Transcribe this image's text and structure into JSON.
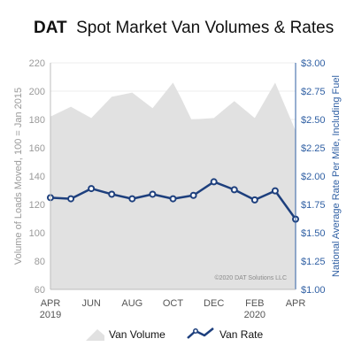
{
  "chart_data": {
    "type": "area+line",
    "title_brand": "DAT",
    "title_rest": "Spot Market Van Volumes & Rates",
    "ylabel_left": "Volume of Loads Moved, 100 = Jan 2015",
    "ylabel_right": "National Average Rate Per Mile, Including Fuel",
    "ylim_left": [
      60,
      220
    ],
    "ylim_right": [
      1.0,
      3.0
    ],
    "yticks_left": [
      "220",
      "200",
      "180",
      "160",
      "140",
      "120",
      "100",
      "80",
      "60"
    ],
    "yticks_right": [
      "$3.00",
      "$2.75",
      "$2.50",
      "$2.25",
      "$2.00",
      "$1.75",
      "$1.50",
      "$1.25",
      "$1.00"
    ],
    "x_tick_labels": [
      {
        "l1": "APR",
        "l2": "2019"
      },
      {
        "l1": "JUN",
        "l2": ""
      },
      {
        "l1": "AUG",
        "l2": ""
      },
      {
        "l1": "OCT",
        "l2": ""
      },
      {
        "l1": "DEC",
        "l2": ""
      },
      {
        "l1": "FEB",
        "l2": "2020"
      },
      {
        "l1": "APR",
        "l2": ""
      }
    ],
    "x_tick_index": [
      0,
      2,
      4,
      6,
      8,
      10,
      12
    ],
    "x_count": 13,
    "series": [
      {
        "name": "Van Volume",
        "axis": "left",
        "kind": "area",
        "color": "#e1e1e1",
        "values": [
          [
            0,
            182
          ],
          [
            1,
            189
          ],
          [
            2,
            181
          ],
          [
            3,
            196
          ],
          [
            4,
            199
          ],
          [
            5,
            188
          ],
          [
            6,
            206
          ],
          [
            6.4,
            195
          ],
          [
            6.9,
            180
          ],
          [
            8,
            181
          ],
          [
            9,
            193
          ],
          [
            10,
            181
          ],
          [
            11,
            206
          ],
          [
            12,
            172
          ]
        ]
      },
      {
        "name": "Van Rate",
        "axis": "right",
        "kind": "line",
        "color": "#1d3f7d",
        "values": [
          1.81,
          1.8,
          1.89,
          1.84,
          1.8,
          1.84,
          1.8,
          1.83,
          1.95,
          1.88,
          1.79,
          1.87,
          1.62
        ]
      }
    ],
    "copyright": "©2020 DAT Solutions LLC",
    "legend": [
      {
        "label": "Van Volume",
        "kind": "area"
      },
      {
        "label": "Van Rate",
        "kind": "line"
      }
    ]
  }
}
